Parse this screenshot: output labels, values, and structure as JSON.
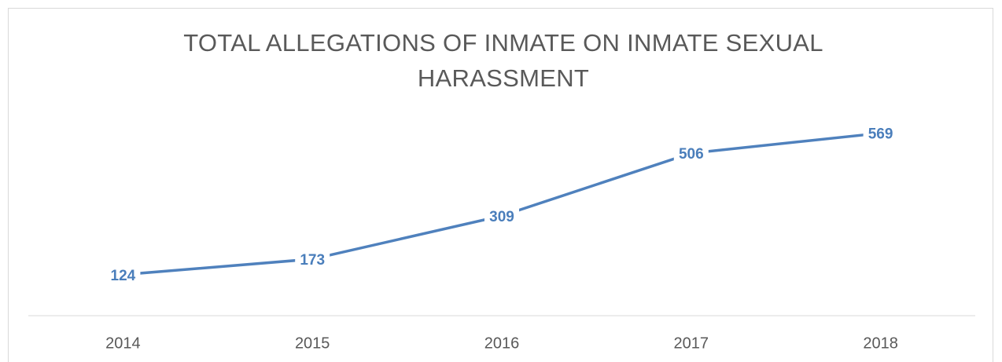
{
  "chart_data": {
    "type": "line",
    "title": "TOTAL ALLEGATIONS OF INMATE ON INMATE SEXUAL HARASSMENT",
    "categories": [
      "2014",
      "2015",
      "2016",
      "2017",
      "2018"
    ],
    "values": [
      124,
      173,
      309,
      506,
      569
    ],
    "color": "#4f81bd",
    "ylim": [
      0,
      600
    ],
    "data_labels": true
  }
}
